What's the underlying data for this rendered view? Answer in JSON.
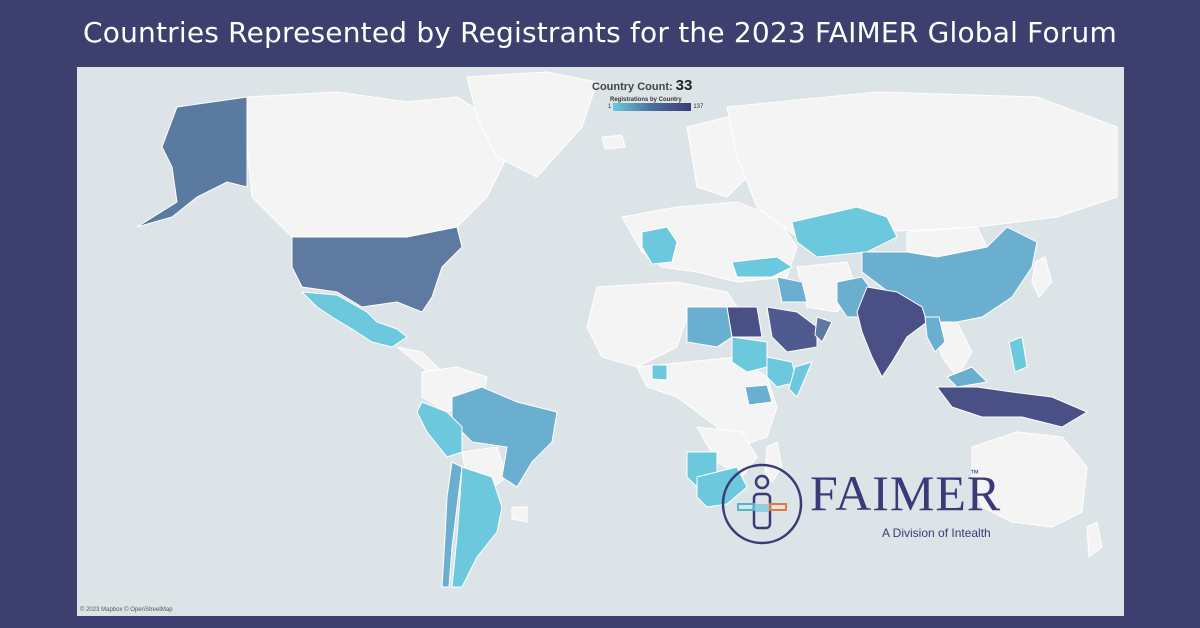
{
  "header": {
    "title": "Countries Represented by Registrants for the 2023 FAIMER Global Forum"
  },
  "map": {
    "count_label": "Country Count:",
    "count_value": "33",
    "legend_title": "Registrations by Country",
    "legend_min": "1",
    "legend_max": "137",
    "attribution": "© 2023 Mapbox © OpenStreetMap",
    "colors": {
      "ocean": "#dde4e8",
      "land": "#f4f4f4",
      "low": "#6cc8dc",
      "mid": "#5b8fb8",
      "high": "#3f4a82"
    }
  },
  "logo": {
    "wordmark": "FAIMER",
    "trademark": "™",
    "tagline": "A Division of Intealth",
    "colors": {
      "navy": "#3b3a78",
      "cyan": "#4ab7d3",
      "orange": "#e07a3a"
    }
  }
}
